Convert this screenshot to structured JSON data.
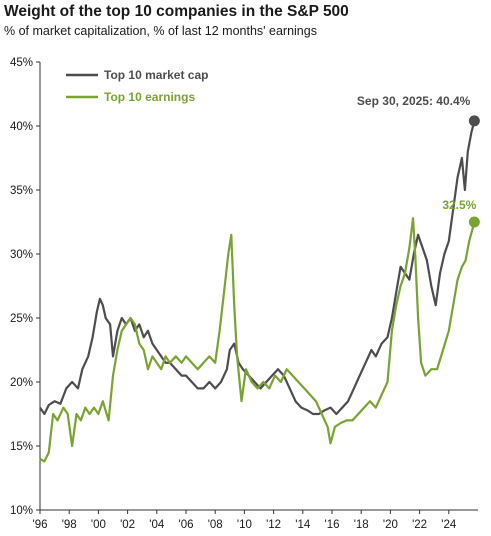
{
  "chart_data": {
    "type": "line",
    "title": "Weight of the top 10 companies in the S&P 500",
    "subtitle": "% of market capitalization, % of last 12 months' earnings",
    "xlabel": "",
    "ylabel": "",
    "xlim": [
      1996,
      2026
    ],
    "ylim": [
      10,
      45
    ],
    "yticks": [
      "10%",
      "15%",
      "20%",
      "25%",
      "30%",
      "35%",
      "40%",
      "45%"
    ],
    "xticks": [
      "'96",
      "'98",
      "'00",
      "'02",
      "'04",
      "'06",
      "'08",
      "'10",
      "'12",
      "'14",
      "'16",
      "'18",
      "'20",
      "'22",
      "'24"
    ],
    "grid": false,
    "legend": "top-left",
    "series": [
      {
        "name": "Top 10 market cap",
        "color": "#4d4d4f",
        "points": [
          [
            1996.0,
            18.0
          ],
          [
            1996.3,
            17.5
          ],
          [
            1996.6,
            18.2
          ],
          [
            1997.0,
            18.5
          ],
          [
            1997.4,
            18.3
          ],
          [
            1997.8,
            19.5
          ],
          [
            1998.2,
            20.0
          ],
          [
            1998.6,
            19.5
          ],
          [
            1998.9,
            21.0
          ],
          [
            1999.3,
            22.0
          ],
          [
            1999.6,
            23.5
          ],
          [
            1999.9,
            25.5
          ],
          [
            2000.1,
            26.5
          ],
          [
            2000.3,
            26.0
          ],
          [
            2000.5,
            25.0
          ],
          [
            2000.8,
            24.5
          ],
          [
            2001.0,
            22.0
          ],
          [
            2001.3,
            24.0
          ],
          [
            2001.6,
            25.0
          ],
          [
            2001.9,
            24.5
          ],
          [
            2002.2,
            25.0
          ],
          [
            2002.5,
            24.0
          ],
          [
            2002.8,
            24.5
          ],
          [
            2003.1,
            23.5
          ],
          [
            2003.4,
            24.0
          ],
          [
            2003.7,
            23.0
          ],
          [
            2004.0,
            22.5
          ],
          [
            2004.3,
            22.0
          ],
          [
            2004.6,
            21.5
          ],
          [
            2004.9,
            21.5
          ],
          [
            2005.3,
            21.0
          ],
          [
            2005.7,
            20.5
          ],
          [
            2006.0,
            20.5
          ],
          [
            2006.4,
            20.0
          ],
          [
            2006.8,
            19.5
          ],
          [
            2007.2,
            19.5
          ],
          [
            2007.6,
            20.0
          ],
          [
            2008.0,
            19.5
          ],
          [
            2008.4,
            20.0
          ],
          [
            2008.8,
            21.0
          ],
          [
            2009.0,
            22.5
          ],
          [
            2009.3,
            23.0
          ],
          [
            2009.6,
            21.5
          ],
          [
            2009.9,
            21.0
          ],
          [
            2010.3,
            20.5
          ],
          [
            2010.7,
            20.0
          ],
          [
            2011.1,
            19.5
          ],
          [
            2011.5,
            20.0
          ],
          [
            2011.9,
            20.5
          ],
          [
            2012.3,
            21.0
          ],
          [
            2012.7,
            20.5
          ],
          [
            2013.1,
            19.5
          ],
          [
            2013.5,
            18.5
          ],
          [
            2013.9,
            18.0
          ],
          [
            2014.3,
            17.8
          ],
          [
            2014.7,
            17.5
          ],
          [
            2015.1,
            17.5
          ],
          [
            2015.5,
            17.8
          ],
          [
            2015.9,
            18.0
          ],
          [
            2016.3,
            17.5
          ],
          [
            2016.7,
            18.0
          ],
          [
            2017.1,
            18.5
          ],
          [
            2017.5,
            19.5
          ],
          [
            2017.9,
            20.5
          ],
          [
            2018.3,
            21.5
          ],
          [
            2018.7,
            22.5
          ],
          [
            2019.0,
            22.0
          ],
          [
            2019.4,
            23.0
          ],
          [
            2019.8,
            23.5
          ],
          [
            2020.1,
            25.0
          ],
          [
            2020.4,
            27.0
          ],
          [
            2020.7,
            29.0
          ],
          [
            2021.0,
            28.5
          ],
          [
            2021.3,
            28.0
          ],
          [
            2021.6,
            30.0
          ],
          [
            2021.9,
            31.5
          ],
          [
            2022.2,
            30.5
          ],
          [
            2022.5,
            29.5
          ],
          [
            2022.8,
            27.5
          ],
          [
            2023.1,
            26.0
          ],
          [
            2023.4,
            28.5
          ],
          [
            2023.7,
            30.0
          ],
          [
            2024.0,
            31.0
          ],
          [
            2024.3,
            33.5
          ],
          [
            2024.6,
            36.0
          ],
          [
            2024.9,
            37.5
          ],
          [
            2025.1,
            35.0
          ],
          [
            2025.3,
            38.0
          ],
          [
            2025.55,
            39.5
          ],
          [
            2025.75,
            40.4
          ]
        ]
      },
      {
        "name": "Top 10 earnings",
        "color": "#7aa334",
        "points": [
          [
            1996.0,
            14.0
          ],
          [
            1996.3,
            13.8
          ],
          [
            1996.6,
            14.5
          ],
          [
            1996.9,
            17.5
          ],
          [
            1997.2,
            17.0
          ],
          [
            1997.6,
            18.0
          ],
          [
            1997.9,
            17.5
          ],
          [
            1998.2,
            15.0
          ],
          [
            1998.5,
            17.5
          ],
          [
            1998.8,
            17.0
          ],
          [
            1999.1,
            18.0
          ],
          [
            1999.4,
            17.5
          ],
          [
            1999.7,
            18.0
          ],
          [
            2000.0,
            17.5
          ],
          [
            2000.3,
            18.5
          ],
          [
            2000.7,
            17.0
          ],
          [
            2001.0,
            20.5
          ],
          [
            2001.3,
            22.5
          ],
          [
            2001.6,
            24.0
          ],
          [
            2001.9,
            24.5
          ],
          [
            2002.2,
            25.0
          ],
          [
            2002.5,
            24.5
          ],
          [
            2002.8,
            23.0
          ],
          [
            2003.1,
            22.5
          ],
          [
            2003.4,
            21.0
          ],
          [
            2003.7,
            22.0
          ],
          [
            2004.0,
            21.5
          ],
          [
            2004.3,
            21.0
          ],
          [
            2004.6,
            22.0
          ],
          [
            2004.9,
            21.5
          ],
          [
            2005.3,
            22.0
          ],
          [
            2005.7,
            21.5
          ],
          [
            2006.0,
            22.0
          ],
          [
            2006.4,
            21.5
          ],
          [
            2006.8,
            21.0
          ],
          [
            2007.2,
            21.5
          ],
          [
            2007.6,
            22.0
          ],
          [
            2008.0,
            21.5
          ],
          [
            2008.3,
            24.0
          ],
          [
            2008.6,
            27.0
          ],
          [
            2008.9,
            30.0
          ],
          [
            2009.1,
            31.5
          ],
          [
            2009.3,
            26.0
          ],
          [
            2009.5,
            22.0
          ],
          [
            2009.8,
            18.5
          ],
          [
            2010.1,
            21.0
          ],
          [
            2010.5,
            20.0
          ],
          [
            2010.9,
            19.5
          ],
          [
            2011.3,
            20.0
          ],
          [
            2011.7,
            19.5
          ],
          [
            2012.1,
            20.5
          ],
          [
            2012.5,
            20.0
          ],
          [
            2012.9,
            21.0
          ],
          [
            2013.3,
            20.5
          ],
          [
            2013.7,
            20.0
          ],
          [
            2014.1,
            19.5
          ],
          [
            2014.5,
            19.0
          ],
          [
            2014.9,
            18.5
          ],
          [
            2015.3,
            17.5
          ],
          [
            2015.7,
            16.5
          ],
          [
            2015.9,
            15.2
          ],
          [
            2016.2,
            16.5
          ],
          [
            2016.6,
            16.8
          ],
          [
            2017.0,
            17.0
          ],
          [
            2017.4,
            17.0
          ],
          [
            2017.8,
            17.5
          ],
          [
            2018.2,
            18.0
          ],
          [
            2018.6,
            18.5
          ],
          [
            2019.0,
            18.0
          ],
          [
            2019.4,
            19.0
          ],
          [
            2019.8,
            20.0
          ],
          [
            2020.1,
            24.0
          ],
          [
            2020.4,
            26.0
          ],
          [
            2020.7,
            27.5
          ],
          [
            2021.0,
            28.5
          ],
          [
            2021.3,
            30.5
          ],
          [
            2021.55,
            32.8
          ],
          [
            2021.7,
            30.0
          ],
          [
            2021.9,
            25.0
          ],
          [
            2022.1,
            21.5
          ],
          [
            2022.4,
            20.5
          ],
          [
            2022.8,
            21.0
          ],
          [
            2023.2,
            21.0
          ],
          [
            2023.6,
            22.5
          ],
          [
            2024.0,
            24.0
          ],
          [
            2024.3,
            26.0
          ],
          [
            2024.6,
            28.0
          ],
          [
            2024.9,
            29.0
          ],
          [
            2025.15,
            29.5
          ],
          [
            2025.4,
            31.0
          ],
          [
            2025.75,
            32.5
          ]
        ]
      }
    ],
    "annotations": [
      {
        "label": "Sep 30, 2025: 40.4%",
        "x": 2025.75,
        "y": 40.4,
        "series": 0
      },
      {
        "label": "32.5%",
        "x": 2025.75,
        "y": 32.5,
        "series": 1
      }
    ]
  }
}
